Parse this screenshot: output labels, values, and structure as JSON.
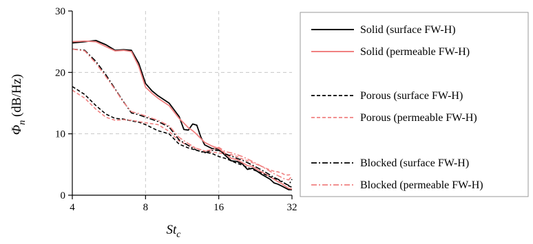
{
  "chart_data": {
    "type": "line",
    "xlabel": {
      "base": "St",
      "subscript": "c"
    },
    "ylabel": {
      "symbol": "Φ",
      "subscript": "n",
      "unit": " (dB/Hz)"
    },
    "xscale": "log2",
    "xlim": [
      4,
      32
    ],
    "ylim": [
      0,
      30
    ],
    "xticks": [
      4,
      8,
      16,
      32
    ],
    "yticks": [
      0,
      10,
      20,
      30
    ],
    "grid": true,
    "legend_position": "right",
    "series": [
      {
        "name": "Solid (surface FW-H)",
        "color": "#000000",
        "style": "solid",
        "points": [
          [
            4,
            24.8
          ],
          [
            4.5,
            25.0
          ],
          [
            5,
            25.2
          ],
          [
            5.5,
            24.5
          ],
          [
            6,
            23.6
          ],
          [
            6.5,
            23.7
          ],
          [
            7,
            23.6
          ],
          [
            7.5,
            21.5
          ],
          [
            8,
            18.2
          ],
          [
            8.5,
            17.0
          ],
          [
            9,
            16.2
          ],
          [
            10,
            15.0
          ],
          [
            11,
            12.8
          ],
          [
            11.5,
            10.7
          ],
          [
            12,
            10.6
          ],
          [
            12.5,
            11.6
          ],
          [
            13,
            11.4
          ],
          [
            13.5,
            9.5
          ],
          [
            14,
            8.2
          ],
          [
            15,
            7.6
          ],
          [
            16,
            7.5
          ],
          [
            17,
            6.5
          ],
          [
            18,
            5.6
          ],
          [
            19,
            5.5
          ],
          [
            20,
            5.1
          ],
          [
            21,
            4.2
          ],
          [
            22,
            4.4
          ],
          [
            23,
            3.9
          ],
          [
            24,
            3.4
          ],
          [
            25,
            3.0
          ],
          [
            26,
            2.6
          ],
          [
            27,
            2.0
          ],
          [
            28,
            1.8
          ],
          [
            29,
            1.5
          ],
          [
            30,
            1.2
          ],
          [
            31,
            0.9
          ],
          [
            32,
            0.9
          ]
        ]
      },
      {
        "name": "Solid (permeable FW-H)",
        "color": "#f08080",
        "style": "solid",
        "points": [
          [
            4,
            25.0
          ],
          [
            4.5,
            25.1
          ],
          [
            5,
            25.0
          ],
          [
            5.5,
            24.2
          ],
          [
            6,
            23.5
          ],
          [
            6.5,
            23.6
          ],
          [
            7,
            23.4
          ],
          [
            7.5,
            21.0
          ],
          [
            8,
            17.6
          ],
          [
            8.5,
            16.6
          ],
          [
            9,
            15.8
          ],
          [
            10,
            14.6
          ],
          [
            11,
            12.5
          ],
          [
            12,
            11.0
          ],
          [
            12.5,
            10.5
          ],
          [
            13,
            9.9
          ],
          [
            14,
            8.6
          ],
          [
            15,
            8.0
          ],
          [
            16,
            7.6
          ],
          [
            17,
            6.8
          ],
          [
            18,
            6.0
          ],
          [
            19,
            5.8
          ],
          [
            20,
            5.3
          ],
          [
            21,
            4.8
          ],
          [
            22,
            4.7
          ],
          [
            23,
            4.2
          ],
          [
            24,
            3.8
          ],
          [
            25,
            3.4
          ],
          [
            26,
            3.0
          ],
          [
            27,
            2.6
          ],
          [
            28,
            2.2
          ],
          [
            29,
            1.9
          ],
          [
            30,
            1.5
          ],
          [
            31,
            1.1
          ],
          [
            32,
            1.0
          ]
        ]
      },
      {
        "name": "Porous (surface FW-H)",
        "color": "#000000",
        "style": "dashed",
        "points": [
          [
            4,
            17.7
          ],
          [
            4.5,
            16.4
          ],
          [
            5,
            14.6
          ],
          [
            5.5,
            13.2
          ],
          [
            6,
            12.5
          ],
          [
            6.5,
            12.4
          ],
          [
            7,
            12.1
          ],
          [
            7.5,
            11.9
          ],
          [
            8,
            11.5
          ],
          [
            9,
            10.5
          ],
          [
            10,
            10.0
          ],
          [
            11,
            8.3
          ],
          [
            12,
            7.7
          ],
          [
            13,
            7.3
          ],
          [
            14,
            7.0
          ],
          [
            15,
            6.8
          ],
          [
            16,
            6.3
          ],
          [
            17,
            6.0
          ],
          [
            18,
            5.6
          ],
          [
            19,
            5.2
          ],
          [
            20,
            4.9
          ],
          [
            21,
            4.5
          ],
          [
            22,
            4.2
          ],
          [
            23,
            3.9
          ],
          [
            24,
            3.6
          ],
          [
            25,
            3.3
          ],
          [
            26,
            3.0
          ],
          [
            27,
            2.8
          ],
          [
            28,
            2.5
          ],
          [
            29,
            2.2
          ],
          [
            30,
            1.9
          ],
          [
            31,
            1.5
          ],
          [
            32,
            1.3
          ]
        ]
      },
      {
        "name": "Porous (permeable FW-H)",
        "color": "#f08080",
        "style": "dashed",
        "points": [
          [
            4,
            17.1
          ],
          [
            4.5,
            15.8
          ],
          [
            5,
            14.0
          ],
          [
            5.5,
            12.7
          ],
          [
            6,
            12.2
          ],
          [
            6.5,
            12.3
          ],
          [
            7,
            12.2
          ],
          [
            7.5,
            12.0
          ],
          [
            8,
            11.8
          ],
          [
            9,
            11.5
          ],
          [
            10,
            10.4
          ],
          [
            11,
            8.8
          ],
          [
            12,
            8.1
          ],
          [
            13,
            7.6
          ],
          [
            14,
            7.2
          ],
          [
            15,
            7.0
          ],
          [
            16,
            6.9
          ],
          [
            17,
            6.7
          ],
          [
            18,
            6.6
          ],
          [
            19,
            6.3
          ],
          [
            20,
            5.9
          ],
          [
            21,
            5.6
          ],
          [
            22,
            5.3
          ],
          [
            23,
            5.0
          ],
          [
            24,
            4.7
          ],
          [
            25,
            4.4
          ],
          [
            26,
            4.1
          ],
          [
            27,
            3.9
          ],
          [
            28,
            3.8
          ],
          [
            29,
            3.6
          ],
          [
            30,
            3.3
          ],
          [
            31,
            3.3
          ],
          [
            32,
            3.4
          ]
        ]
      },
      {
        "name": "Blocked (surface FW-H)",
        "color": "#000000",
        "style": "dashdot",
        "points": [
          [
            4,
            23.8
          ],
          [
            4.5,
            23.6
          ],
          [
            5,
            21.8
          ],
          [
            5.5,
            19.6
          ],
          [
            6,
            17.3
          ],
          [
            6.5,
            15.2
          ],
          [
            7,
            13.4
          ],
          [
            7.5,
            13.1
          ],
          [
            8,
            12.7
          ],
          [
            9,
            12.0
          ],
          [
            10,
            11.1
          ],
          [
            11,
            9.0
          ],
          [
            12,
            8.1
          ],
          [
            13,
            7.3
          ],
          [
            14,
            6.9
          ],
          [
            15,
            7.3
          ],
          [
            16,
            7.3
          ],
          [
            17,
            6.7
          ],
          [
            18,
            6.4
          ],
          [
            19,
            6.0
          ],
          [
            20,
            5.7
          ],
          [
            21,
            5.3
          ],
          [
            22,
            4.9
          ],
          [
            23,
            4.5
          ],
          [
            24,
            4.1
          ],
          [
            25,
            3.7
          ],
          [
            26,
            3.3
          ],
          [
            27,
            2.9
          ],
          [
            28,
            2.6
          ],
          [
            29,
            2.3
          ],
          [
            30,
            1.9
          ],
          [
            31,
            1.6
          ],
          [
            32,
            2.6
          ]
        ]
      },
      {
        "name": "Blocked (permeable FW-H)",
        "color": "#f08080",
        "style": "dashdot",
        "points": [
          [
            4,
            23.8
          ],
          [
            4.5,
            23.5
          ],
          [
            5,
            21.5
          ],
          [
            5.5,
            19.3
          ],
          [
            6,
            17.2
          ],
          [
            6.5,
            15.1
          ],
          [
            7,
            13.6
          ],
          [
            7.5,
            13.3
          ],
          [
            8,
            12.9
          ],
          [
            9,
            12.2
          ],
          [
            10,
            11.3
          ],
          [
            11,
            9.4
          ],
          [
            12,
            8.4
          ],
          [
            13,
            7.6
          ],
          [
            14,
            7.2
          ],
          [
            15,
            7.4
          ],
          [
            16,
            7.8
          ],
          [
            17,
            7.1
          ],
          [
            18,
            6.9
          ],
          [
            19,
            6.6
          ],
          [
            20,
            6.3
          ],
          [
            21,
            5.9
          ],
          [
            22,
            5.5
          ],
          [
            23,
            5.1
          ],
          [
            24,
            4.7
          ],
          [
            25,
            4.3
          ],
          [
            26,
            3.9
          ],
          [
            27,
            3.5
          ],
          [
            28,
            3.2
          ],
          [
            29,
            2.9
          ],
          [
            30,
            2.6
          ],
          [
            31,
            2.5
          ],
          [
            32,
            3.1
          ]
        ]
      }
    ]
  }
}
